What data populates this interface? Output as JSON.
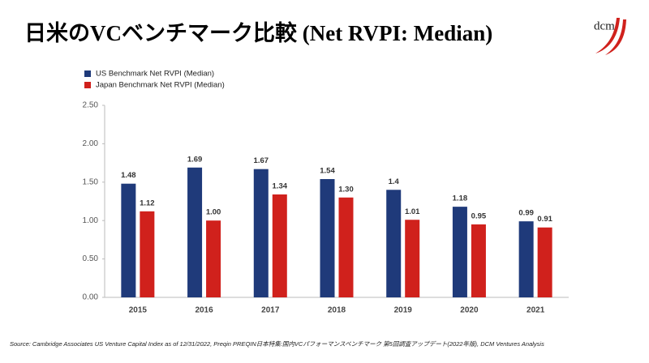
{
  "chart_data": {
    "type": "bar",
    "title": "日米のVCベンチマーク比較 (Net RVPI: Median)",
    "logo": "dcm",
    "source": "Source: Cambridge Associates US Venture Capital Index as of 12/31/2022, Preqin PREQIN日本特集:国内VCパフォーマンスベンチマーク 第5回調査アップデート(2022年版), DCM Ventures Analysis",
    "categories": [
      "2015",
      "2016",
      "2017",
      "2018",
      "2019",
      "2020",
      "2021"
    ],
    "series": [
      {
        "name": "US Benchmark Net RVPI (Median)",
        "color": "#1f3a7a",
        "values": [
          1.48,
          1.69,
          1.67,
          1.54,
          1.4,
          1.18,
          0.99
        ]
      },
      {
        "name": "Japan Benchmark Net RVPI (Median)",
        "color": "#d0211c",
        "values": [
          1.12,
          1.0,
          1.34,
          1.3,
          1.01,
          0.95,
          0.91
        ],
        "value_labels": [
          "1.12",
          "1.00",
          "1.34",
          "1.30",
          "1.01",
          "0.95",
          "0.91"
        ]
      }
    ],
    "ylim": [
      0,
      2.5
    ],
    "yticks": [
      {
        "value": 0,
        "label": "0.00"
      },
      {
        "value": 0.5,
        "label": "0.50"
      },
      {
        "value": 1,
        "label": "1.00"
      },
      {
        "value": 1.5,
        "label": "1.50"
      },
      {
        "value": 2,
        "label": "2.00"
      },
      {
        "value": 2.5,
        "label": "2.50"
      }
    ],
    "grid": false
  }
}
